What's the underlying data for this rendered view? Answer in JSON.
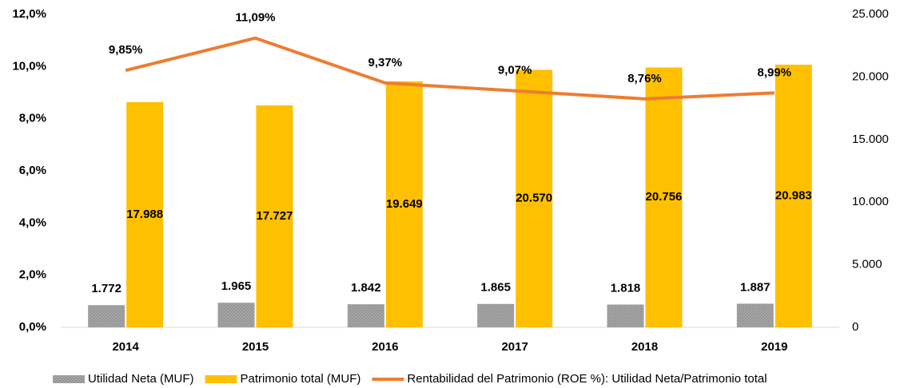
{
  "chart_data": {
    "type": "bar-line",
    "categories": [
      "2014",
      "2015",
      "2016",
      "2017",
      "2018",
      "2019"
    ],
    "series": [
      {
        "name": "Utilidad Neta (MUF)",
        "type": "bar",
        "axis": "y2",
        "color": "#a6a6a6",
        "values": [
          1772,
          1965,
          1842,
          1865,
          1818,
          1887
        ],
        "value_labels": [
          "1.772",
          "1.965",
          "1.842",
          "1.865",
          "1.818",
          "1.887"
        ]
      },
      {
        "name": "Patrimonio total (MUF)",
        "type": "bar",
        "axis": "y2",
        "color": "#ffc000",
        "values": [
          17988,
          17727,
          19649,
          20570,
          20756,
          20983
        ],
        "value_labels": [
          "17.988",
          "17.727",
          "19.649",
          "20.570",
          "20.756",
          "20.983"
        ]
      },
      {
        "name": "Rentabilidad del Patrimonio (ROE %): Utilidad Neta/Patrimonio total",
        "type": "line",
        "color": "#ed7d31",
        "values": [
          9.85,
          11.09,
          9.37,
          9.07,
          8.76,
          8.99
        ],
        "value_labels": [
          "9,85%",
          "11,09%",
          "9,37%",
          "9,07%",
          "8,76%",
          "8,99%"
        ]
      }
    ],
    "ylim": [
      0,
      12
    ],
    "yticks": [
      {
        "value": 0,
        "label": "0,0%"
      },
      {
        "value": 2,
        "label": "2,0%"
      },
      {
        "value": 4,
        "label": "4,0%"
      },
      {
        "value": 6,
        "label": "6,0%"
      },
      {
        "value": 8,
        "label": "8,0%"
      },
      {
        "value": 10,
        "label": "10,0%"
      },
      {
        "value": 12,
        "label": "12,0%"
      }
    ],
    "y2lim": [
      0,
      25000
    ],
    "y2ticks": [
      0,
      {
        "value": 5000,
        "label": "5.000"
      },
      {
        "value": 10000,
        "label": "10.000"
      },
      {
        "value": 15000,
        "label": "15.000"
      },
      {
        "value": 20000,
        "label": "20.000"
      },
      {
        "value": 25000,
        "label": "25.000"
      }
    ],
    "legend": "bottom"
  }
}
